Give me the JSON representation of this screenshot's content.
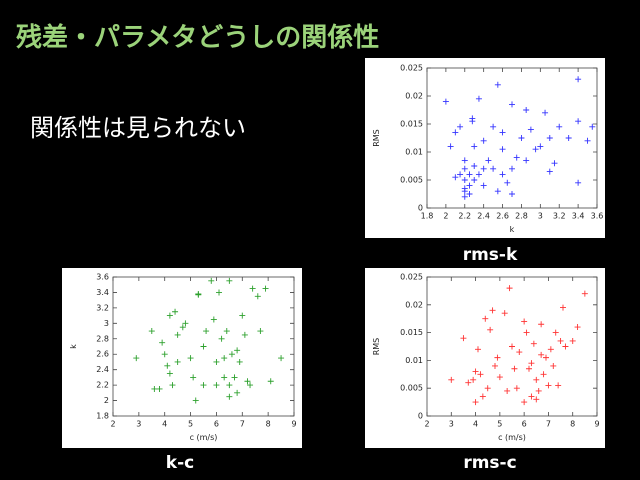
{
  "slide": {
    "title": "残差・パラメタどうしの関係性",
    "body": "関係性は見られない"
  },
  "chart_data": [
    {
      "type": "scatter",
      "title": "rms-k",
      "xlabel": "k",
      "ylabel": "RMS",
      "color": "#3333ff",
      "x": [
        2.0,
        2.05,
        2.1,
        2.1,
        2.15,
        2.15,
        2.2,
        2.2,
        2.2,
        2.2,
        2.2,
        2.2,
        2.25,
        2.25,
        2.25,
        2.28,
        2.28,
        2.3,
        2.3,
        2.3,
        2.35,
        2.35,
        2.4,
        2.4,
        2.4,
        2.45,
        2.5,
        2.5,
        2.55,
        2.55,
        2.6,
        2.6,
        2.6,
        2.65,
        2.7,
        2.7,
        2.7,
        2.75,
        2.8,
        2.85,
        2.85,
        2.9,
        2.95,
        3.0,
        3.05,
        3.1,
        3.1,
        3.15,
        3.2,
        3.3,
        3.4,
        3.4,
        3.4,
        3.5,
        3.55
      ],
      "values": [
        0.019,
        0.011,
        0.0135,
        0.0055,
        0.0145,
        0.006,
        0.002,
        0.003,
        0.0035,
        0.005,
        0.007,
        0.0085,
        0.0025,
        0.004,
        0.006,
        0.016,
        0.0155,
        0.0075,
        0.011,
        0.005,
        0.0195,
        0.006,
        0.004,
        0.007,
        0.012,
        0.0085,
        0.0145,
        0.007,
        0.022,
        0.003,
        0.0105,
        0.0135,
        0.006,
        0.0045,
        0.0185,
        0.007,
        0.0025,
        0.009,
        0.0125,
        0.0175,
        0.0085,
        0.014,
        0.0105,
        0.011,
        0.017,
        0.0065,
        0.0125,
        0.008,
        0.0145,
        0.0125,
        0.023,
        0.0155,
        0.0045,
        0.012,
        0.0145
      ],
      "xlim": [
        1.8,
        3.6
      ],
      "xticks": [
        1.8,
        2,
        2.2,
        2.4,
        2.6,
        2.8,
        3,
        3.2,
        3.4,
        3.6
      ],
      "ylim": [
        0,
        0.025
      ],
      "yticks": [
        0,
        0.005,
        0.01,
        0.015,
        0.02,
        0.025
      ]
    },
    {
      "type": "scatter",
      "title": "k-c",
      "xlabel": "c (m/s)",
      "ylabel": "k",
      "color": "#2ca02c",
      "x": [
        2.9,
        3.5,
        3.6,
        3.8,
        3.9,
        4.0,
        4.1,
        4.2,
        4.2,
        4.3,
        4.4,
        4.5,
        4.5,
        4.7,
        4.8,
        5.0,
        5.1,
        5.2,
        5.3,
        5.3,
        5.5,
        5.5,
        5.6,
        5.8,
        5.9,
        6.0,
        6.0,
        6.1,
        6.2,
        6.3,
        6.3,
        6.4,
        6.5,
        6.5,
        6.5,
        6.6,
        6.7,
        6.8,
        6.8,
        6.9,
        7.0,
        7.1,
        7.2,
        7.3,
        7.4,
        7.6,
        7.7,
        7.9,
        8.1,
        8.5
      ],
      "values": [
        2.55,
        2.9,
        2.15,
        2.15,
        2.75,
        2.6,
        2.45,
        3.1,
        2.35,
        2.2,
        3.15,
        2.85,
        2.5,
        2.95,
        3.0,
        2.55,
        2.3,
        2.0,
        3.37,
        3.38,
        2.7,
        2.2,
        2.9,
        3.55,
        3.05,
        2.5,
        2.2,
        3.4,
        2.8,
        2.3,
        2.55,
        2.9,
        2.2,
        2.05,
        3.55,
        2.6,
        2.3,
        2.1,
        2.65,
        2.5,
        3.1,
        2.85,
        2.25,
        2.2,
        3.45,
        3.35,
        2.9,
        3.45,
        2.25,
        2.55
      ],
      "xlim": [
        2,
        9
      ],
      "xticks": [
        2,
        3,
        4,
        5,
        6,
        7,
        8,
        9
      ],
      "ylim": [
        1.8,
        3.6
      ],
      "yticks": [
        1.8,
        2,
        2.2,
        2.4,
        2.6,
        2.8,
        3,
        3.2,
        3.4,
        3.6
      ]
    },
    {
      "type": "scatter",
      "title": "rms-c",
      "xlabel": "c (m/s)",
      "ylabel": "RMS",
      "color": "#ff3333",
      "x": [
        3.0,
        3.5,
        3.7,
        3.9,
        4.0,
        4.0,
        4.1,
        4.2,
        4.3,
        4.4,
        4.5,
        4.6,
        4.7,
        4.8,
        4.9,
        5.0,
        5.2,
        5.3,
        5.4,
        5.5,
        5.6,
        5.7,
        5.8,
        6.0,
        6.0,
        6.1,
        6.2,
        6.3,
        6.3,
        6.4,
        6.5,
        6.5,
        6.6,
        6.7,
        6.7,
        6.8,
        6.9,
        7.0,
        7.1,
        7.2,
        7.3,
        7.4,
        7.5,
        7.6,
        7.7,
        8.0,
        8.2,
        8.5
      ],
      "values": [
        0.0065,
        0.014,
        0.006,
        0.0065,
        0.008,
        0.0025,
        0.012,
        0.0075,
        0.0035,
        0.0175,
        0.005,
        0.0155,
        0.019,
        0.009,
        0.0105,
        0.007,
        0.0185,
        0.0045,
        0.023,
        0.0125,
        0.0085,
        0.005,
        0.0115,
        0.017,
        0.0025,
        0.015,
        0.0085,
        0.0035,
        0.0095,
        0.013,
        0.003,
        0.0065,
        0.0045,
        0.011,
        0.0165,
        0.0075,
        0.0105,
        0.0055,
        0.012,
        0.009,
        0.015,
        0.0055,
        0.0135,
        0.0195,
        0.0125,
        0.0135,
        0.016,
        0.022
      ],
      "xlim": [
        2,
        9
      ],
      "xticks": [
        2,
        3,
        4,
        5,
        6,
        7,
        8,
        9
      ],
      "ylim": [
        0,
        0.025
      ],
      "yticks": [
        0,
        0.005,
        0.01,
        0.015,
        0.02,
        0.025
      ]
    }
  ]
}
